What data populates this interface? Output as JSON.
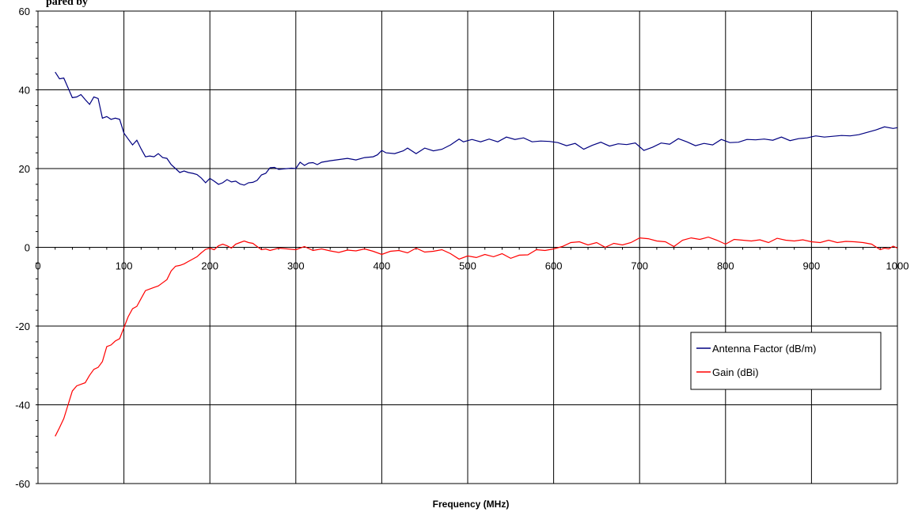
{
  "chart_data": {
    "type": "line",
    "title": "",
    "title_fragment": "pared by",
    "xlabel": "Frequency (MHz)",
    "ylabel": "",
    "xlim": [
      0,
      1000
    ],
    "ylim": [
      -60,
      60
    ],
    "x_ticks": [
      0,
      100,
      200,
      300,
      400,
      500,
      600,
      700,
      800,
      900,
      1000
    ],
    "y_ticks": [
      -60,
      -40,
      -20,
      0,
      20,
      40,
      60
    ],
    "grid": true,
    "legend_position": "right",
    "series": [
      {
        "name": "Antenna Factor (dB/m)",
        "color": "#000080",
        "points": [
          [
            20,
            44.5
          ],
          [
            25,
            42.8
          ],
          [
            30,
            43.0
          ],
          [
            35,
            40.5
          ],
          [
            40,
            38.0
          ],
          [
            45,
            38.2
          ],
          [
            50,
            38.8
          ],
          [
            55,
            37.5
          ],
          [
            60,
            36.3
          ],
          [
            65,
            38.2
          ],
          [
            70,
            37.8
          ],
          [
            75,
            32.8
          ],
          [
            80,
            33.2
          ],
          [
            85,
            32.5
          ],
          [
            90,
            32.8
          ],
          [
            95,
            32.5
          ],
          [
            100,
            29.0
          ],
          [
            105,
            27.5
          ],
          [
            110,
            26.0
          ],
          [
            115,
            27.2
          ],
          [
            120,
            25.0
          ],
          [
            125,
            23.0
          ],
          [
            130,
            23.2
          ],
          [
            135,
            23.0
          ],
          [
            140,
            23.8
          ],
          [
            145,
            22.8
          ],
          [
            150,
            22.6
          ],
          [
            155,
            21.0
          ],
          [
            160,
            20.0
          ],
          [
            165,
            19.0
          ],
          [
            170,
            19.4
          ],
          [
            175,
            19.0
          ],
          [
            180,
            18.8
          ],
          [
            185,
            18.5
          ],
          [
            190,
            17.6
          ],
          [
            195,
            16.4
          ],
          [
            200,
            17.5
          ],
          [
            205,
            16.8
          ],
          [
            210,
            16.0
          ],
          [
            215,
            16.4
          ],
          [
            220,
            17.2
          ],
          [
            225,
            16.6
          ],
          [
            230,
            16.8
          ],
          [
            235,
            16.1
          ],
          [
            240,
            15.8
          ],
          [
            245,
            16.4
          ],
          [
            250,
            16.5
          ],
          [
            255,
            17.0
          ],
          [
            260,
            18.4
          ],
          [
            265,
            18.8
          ],
          [
            270,
            20.2
          ],
          [
            275,
            20.3
          ],
          [
            280,
            19.8
          ],
          [
            285,
            19.9
          ],
          [
            290,
            20.0
          ],
          [
            295,
            20.1
          ],
          [
            300,
            20.0
          ],
          [
            305,
            21.6
          ],
          [
            310,
            20.8
          ],
          [
            315,
            21.4
          ],
          [
            320,
            21.5
          ],
          [
            325,
            21.0
          ],
          [
            330,
            21.6
          ],
          [
            340,
            22.0
          ],
          [
            350,
            22.3
          ],
          [
            360,
            22.6
          ],
          [
            370,
            22.2
          ],
          [
            380,
            22.8
          ],
          [
            390,
            23.0
          ],
          [
            395,
            23.5
          ],
          [
            400,
            24.6
          ],
          [
            405,
            24.0
          ],
          [
            415,
            23.8
          ],
          [
            425,
            24.5
          ],
          [
            430,
            25.2
          ],
          [
            440,
            23.8
          ],
          [
            450,
            25.2
          ],
          [
            460,
            24.5
          ],
          [
            470,
            24.9
          ],
          [
            480,
            26.0
          ],
          [
            490,
            27.5
          ],
          [
            495,
            26.8
          ],
          [
            505,
            27.4
          ],
          [
            515,
            26.8
          ],
          [
            525,
            27.5
          ],
          [
            535,
            26.8
          ],
          [
            545,
            28.0
          ],
          [
            555,
            27.4
          ],
          [
            565,
            27.8
          ],
          [
            575,
            26.8
          ],
          [
            585,
            27.0
          ],
          [
            595,
            26.9
          ],
          [
            605,
            26.6
          ],
          [
            615,
            25.8
          ],
          [
            625,
            26.4
          ],
          [
            635,
            24.9
          ],
          [
            645,
            25.9
          ],
          [
            655,
            26.7
          ],
          [
            665,
            25.7
          ],
          [
            675,
            26.3
          ],
          [
            685,
            26.1
          ],
          [
            695,
            26.5
          ],
          [
            705,
            24.6
          ],
          [
            715,
            25.4
          ],
          [
            725,
            26.5
          ],
          [
            735,
            26.2
          ],
          [
            745,
            27.6
          ],
          [
            755,
            26.8
          ],
          [
            765,
            25.8
          ],
          [
            775,
            26.4
          ],
          [
            785,
            26.0
          ],
          [
            795,
            27.4
          ],
          [
            805,
            26.6
          ],
          [
            815,
            26.7
          ],
          [
            825,
            27.4
          ],
          [
            835,
            27.3
          ],
          [
            845,
            27.5
          ],
          [
            855,
            27.2
          ],
          [
            865,
            28.0
          ],
          [
            875,
            27.1
          ],
          [
            885,
            27.6
          ],
          [
            895,
            27.8
          ],
          [
            905,
            28.3
          ],
          [
            915,
            28.0
          ],
          [
            925,
            28.2
          ],
          [
            935,
            28.4
          ],
          [
            945,
            28.3
          ],
          [
            955,
            28.6
          ],
          [
            965,
            29.2
          ],
          [
            975,
            29.8
          ],
          [
            985,
            30.6
          ],
          [
            995,
            30.2
          ],
          [
            1000,
            30.4
          ]
        ]
      },
      {
        "name": "Gain (dBi)",
        "color": "#ff0000",
        "points": [
          [
            20,
            -48.0
          ],
          [
            25,
            -45.8
          ],
          [
            30,
            -43.5
          ],
          [
            35,
            -40.0
          ],
          [
            40,
            -36.5
          ],
          [
            45,
            -35.2
          ],
          [
            50,
            -34.8
          ],
          [
            55,
            -34.4
          ],
          [
            60,
            -32.5
          ],
          [
            65,
            -31.0
          ],
          [
            70,
            -30.5
          ],
          [
            75,
            -29.0
          ],
          [
            80,
            -25.2
          ],
          [
            85,
            -24.8
          ],
          [
            90,
            -23.8
          ],
          [
            95,
            -23.2
          ],
          [
            100,
            -20.4
          ],
          [
            105,
            -17.6
          ],
          [
            110,
            -15.6
          ],
          [
            115,
            -15.0
          ],
          [
            120,
            -13.0
          ],
          [
            125,
            -11.0
          ],
          [
            130,
            -10.6
          ],
          [
            135,
            -10.2
          ],
          [
            140,
            -9.8
          ],
          [
            145,
            -9.0
          ],
          [
            150,
            -8.2
          ],
          [
            155,
            -6.0
          ],
          [
            160,
            -4.8
          ],
          [
            165,
            -4.6
          ],
          [
            170,
            -4.2
          ],
          [
            175,
            -3.6
          ],
          [
            180,
            -3.0
          ],
          [
            185,
            -2.4
          ],
          [
            190,
            -1.4
          ],
          [
            195,
            -0.5
          ],
          [
            200,
            -0.2
          ],
          [
            205,
            -0.6
          ],
          [
            210,
            0.4
          ],
          [
            215,
            0.8
          ],
          [
            220,
            0.4
          ],
          [
            225,
            -0.2
          ],
          [
            230,
            0.8
          ],
          [
            235,
            1.2
          ],
          [
            240,
            1.6
          ],
          [
            245,
            1.2
          ],
          [
            250,
            1.0
          ],
          [
            255,
            0.2
          ],
          [
            260,
            -0.6
          ],
          [
            265,
            -0.4
          ],
          [
            270,
            -0.8
          ],
          [
            280,
            -0.2
          ],
          [
            290,
            -0.4
          ],
          [
            300,
            -0.6
          ],
          [
            310,
            0.2
          ],
          [
            320,
            -0.8
          ],
          [
            330,
            -0.4
          ],
          [
            340,
            -0.9
          ],
          [
            350,
            -1.3
          ],
          [
            360,
            -0.7
          ],
          [
            370,
            -0.9
          ],
          [
            380,
            -0.4
          ],
          [
            390,
            -1.0
          ],
          [
            400,
            -1.8
          ],
          [
            410,
            -1.0
          ],
          [
            420,
            -0.8
          ],
          [
            430,
            -1.4
          ],
          [
            440,
            -0.2
          ],
          [
            450,
            -1.2
          ],
          [
            460,
            -1.0
          ],
          [
            470,
            -0.6
          ],
          [
            480,
            -1.6
          ],
          [
            490,
            -3.0
          ],
          [
            500,
            -2.2
          ],
          [
            510,
            -2.6
          ],
          [
            520,
            -1.8
          ],
          [
            530,
            -2.4
          ],
          [
            540,
            -1.6
          ],
          [
            550,
            -2.8
          ],
          [
            560,
            -2.0
          ],
          [
            570,
            -1.9
          ],
          [
            580,
            -0.6
          ],
          [
            590,
            -0.8
          ],
          [
            600,
            -0.4
          ],
          [
            610,
            0.2
          ],
          [
            620,
            1.2
          ],
          [
            630,
            1.4
          ],
          [
            640,
            0.6
          ],
          [
            650,
            1.2
          ],
          [
            660,
            0.0
          ],
          [
            670,
            1.0
          ],
          [
            680,
            0.6
          ],
          [
            690,
            1.2
          ],
          [
            700,
            2.4
          ],
          [
            710,
            2.2
          ],
          [
            720,
            1.6
          ],
          [
            730,
            1.4
          ],
          [
            740,
            0.2
          ],
          [
            750,
            1.8
          ],
          [
            760,
            2.4
          ],
          [
            770,
            2.0
          ],
          [
            780,
            2.6
          ],
          [
            790,
            1.8
          ],
          [
            800,
            0.8
          ],
          [
            810,
            2.0
          ],
          [
            820,
            1.8
          ],
          [
            830,
            1.6
          ],
          [
            840,
            1.9
          ],
          [
            850,
            1.2
          ],
          [
            860,
            2.3
          ],
          [
            870,
            1.8
          ],
          [
            880,
            1.6
          ],
          [
            890,
            1.9
          ],
          [
            900,
            1.4
          ],
          [
            910,
            1.2
          ],
          [
            920,
            1.8
          ],
          [
            930,
            1.2
          ],
          [
            940,
            1.5
          ],
          [
            950,
            1.4
          ],
          [
            960,
            1.2
          ],
          [
            970,
            0.8
          ],
          [
            980,
            -0.6
          ],
          [
            985,
            -0.2
          ],
          [
            990,
            -0.4
          ],
          [
            995,
            0.3
          ],
          [
            1000,
            -0.2
          ]
        ]
      }
    ]
  }
}
